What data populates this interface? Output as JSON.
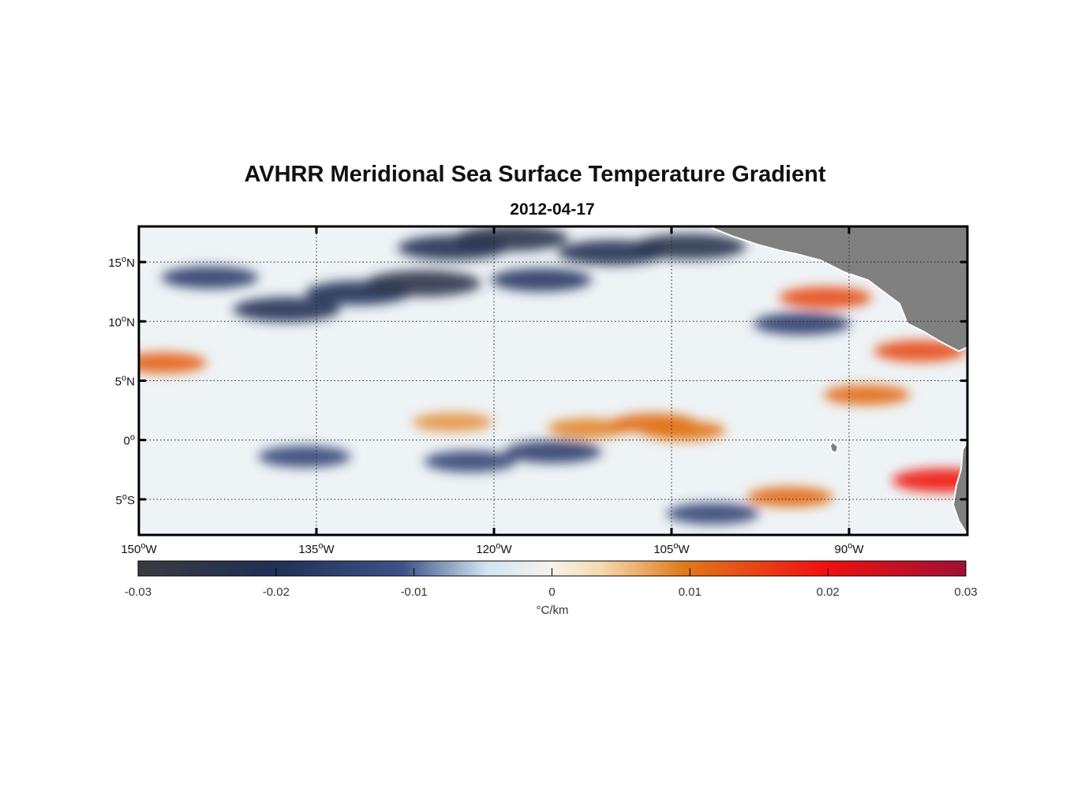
{
  "title": "AVHRR Meridional Sea Surface Temperature Gradient",
  "subtitle": "2012-04-17",
  "map": {
    "lon_range": [
      -150,
      -80
    ],
    "lat_range": [
      -8,
      18
    ],
    "lon_ticks": [
      {
        "value": -150,
        "label": "150°W"
      },
      {
        "value": -135,
        "label": "135°W"
      },
      {
        "value": -120,
        "label": "120°W"
      },
      {
        "value": -105,
        "label": "105°W"
      },
      {
        "value": -90,
        "label": "90°W"
      }
    ],
    "lat_ticks": [
      {
        "value": 15,
        "label": "15°N"
      },
      {
        "value": 10,
        "label": "10°N"
      },
      {
        "value": 5,
        "label": "5°N"
      },
      {
        "value": 0,
        "label": "0°"
      },
      {
        "value": -5,
        "label": "5°S"
      }
    ],
    "grid": "dotted",
    "land_color": "#808080",
    "ocean_background": "#eef3f6"
  },
  "colorbar": {
    "range": [
      -0.03,
      0.03
    ],
    "ticks": [
      "-0.03",
      "-0.02",
      "-0.01",
      "0",
      "0.01",
      "0.02",
      "0.03"
    ],
    "tick_values": [
      -0.03,
      -0.02,
      -0.01,
      0,
      0.01,
      0.02,
      0.03
    ],
    "unit": "°C/km",
    "colors": [
      "#3a3b40",
      "#1f2f55",
      "#3d5387",
      "#d0e4f2",
      "#f7f3ec",
      "#f5d9b0",
      "#e07a1a",
      "#f01010",
      "#a01035"
    ]
  },
  "chart_data": {
    "type": "heatmap",
    "title": "AVHRR Meridional Sea Surface Temperature Gradient",
    "subtitle": "2012-04-17",
    "xlabel": "",
    "ylabel": "",
    "xlim": [
      -150,
      -80
    ],
    "ylim": [
      -8,
      18
    ],
    "colorbar_label": "°C/km",
    "clim": [
      -0.03,
      0.03
    ],
    "features": [
      {
        "lon": -123.5,
        "lat": 16.2,
        "value": -0.022
      },
      {
        "lon": -118.5,
        "lat": 17.0,
        "value": -0.024
      },
      {
        "lon": -131.5,
        "lat": 12.4,
        "value": -0.02
      },
      {
        "lon": -137.5,
        "lat": 11.0,
        "value": -0.021
      },
      {
        "lon": -126.0,
        "lat": 13.2,
        "value": -0.025
      },
      {
        "lon": -116.0,
        "lat": 13.5,
        "value": -0.018
      },
      {
        "lon": -110.0,
        "lat": 15.8,
        "value": -0.022
      },
      {
        "lon": -103.5,
        "lat": 16.3,
        "value": -0.024
      },
      {
        "lon": -94.0,
        "lat": 9.8,
        "value": -0.016
      },
      {
        "lon": -144.0,
        "lat": 13.7,
        "value": -0.016
      },
      {
        "lon": -136.0,
        "lat": -1.4,
        "value": -0.014
      },
      {
        "lon": -122.0,
        "lat": -1.8,
        "value": -0.014
      },
      {
        "lon": -115.0,
        "lat": -1.0,
        "value": -0.016
      },
      {
        "lon": -101.5,
        "lat": -6.2,
        "value": -0.014
      },
      {
        "lon": -112.0,
        "lat": 1.0,
        "value": 0.009
      },
      {
        "lon": -106.5,
        "lat": 1.4,
        "value": 0.011
      },
      {
        "lon": -104.0,
        "lat": 0.8,
        "value": 0.01
      },
      {
        "lon": -123.5,
        "lat": 1.5,
        "value": 0.008
      },
      {
        "lon": -92.0,
        "lat": 12.0,
        "value": 0.014
      },
      {
        "lon": -82.0,
        "lat": -3.4,
        "value": 0.019
      },
      {
        "lon": -95.0,
        "lat": -4.8,
        "value": 0.011
      },
      {
        "lon": -148.0,
        "lat": 6.5,
        "value": 0.012
      },
      {
        "lon": -84.0,
        "lat": 7.5,
        "value": 0.014
      },
      {
        "lon": -88.5,
        "lat": 3.8,
        "value": 0.011
      }
    ]
  }
}
